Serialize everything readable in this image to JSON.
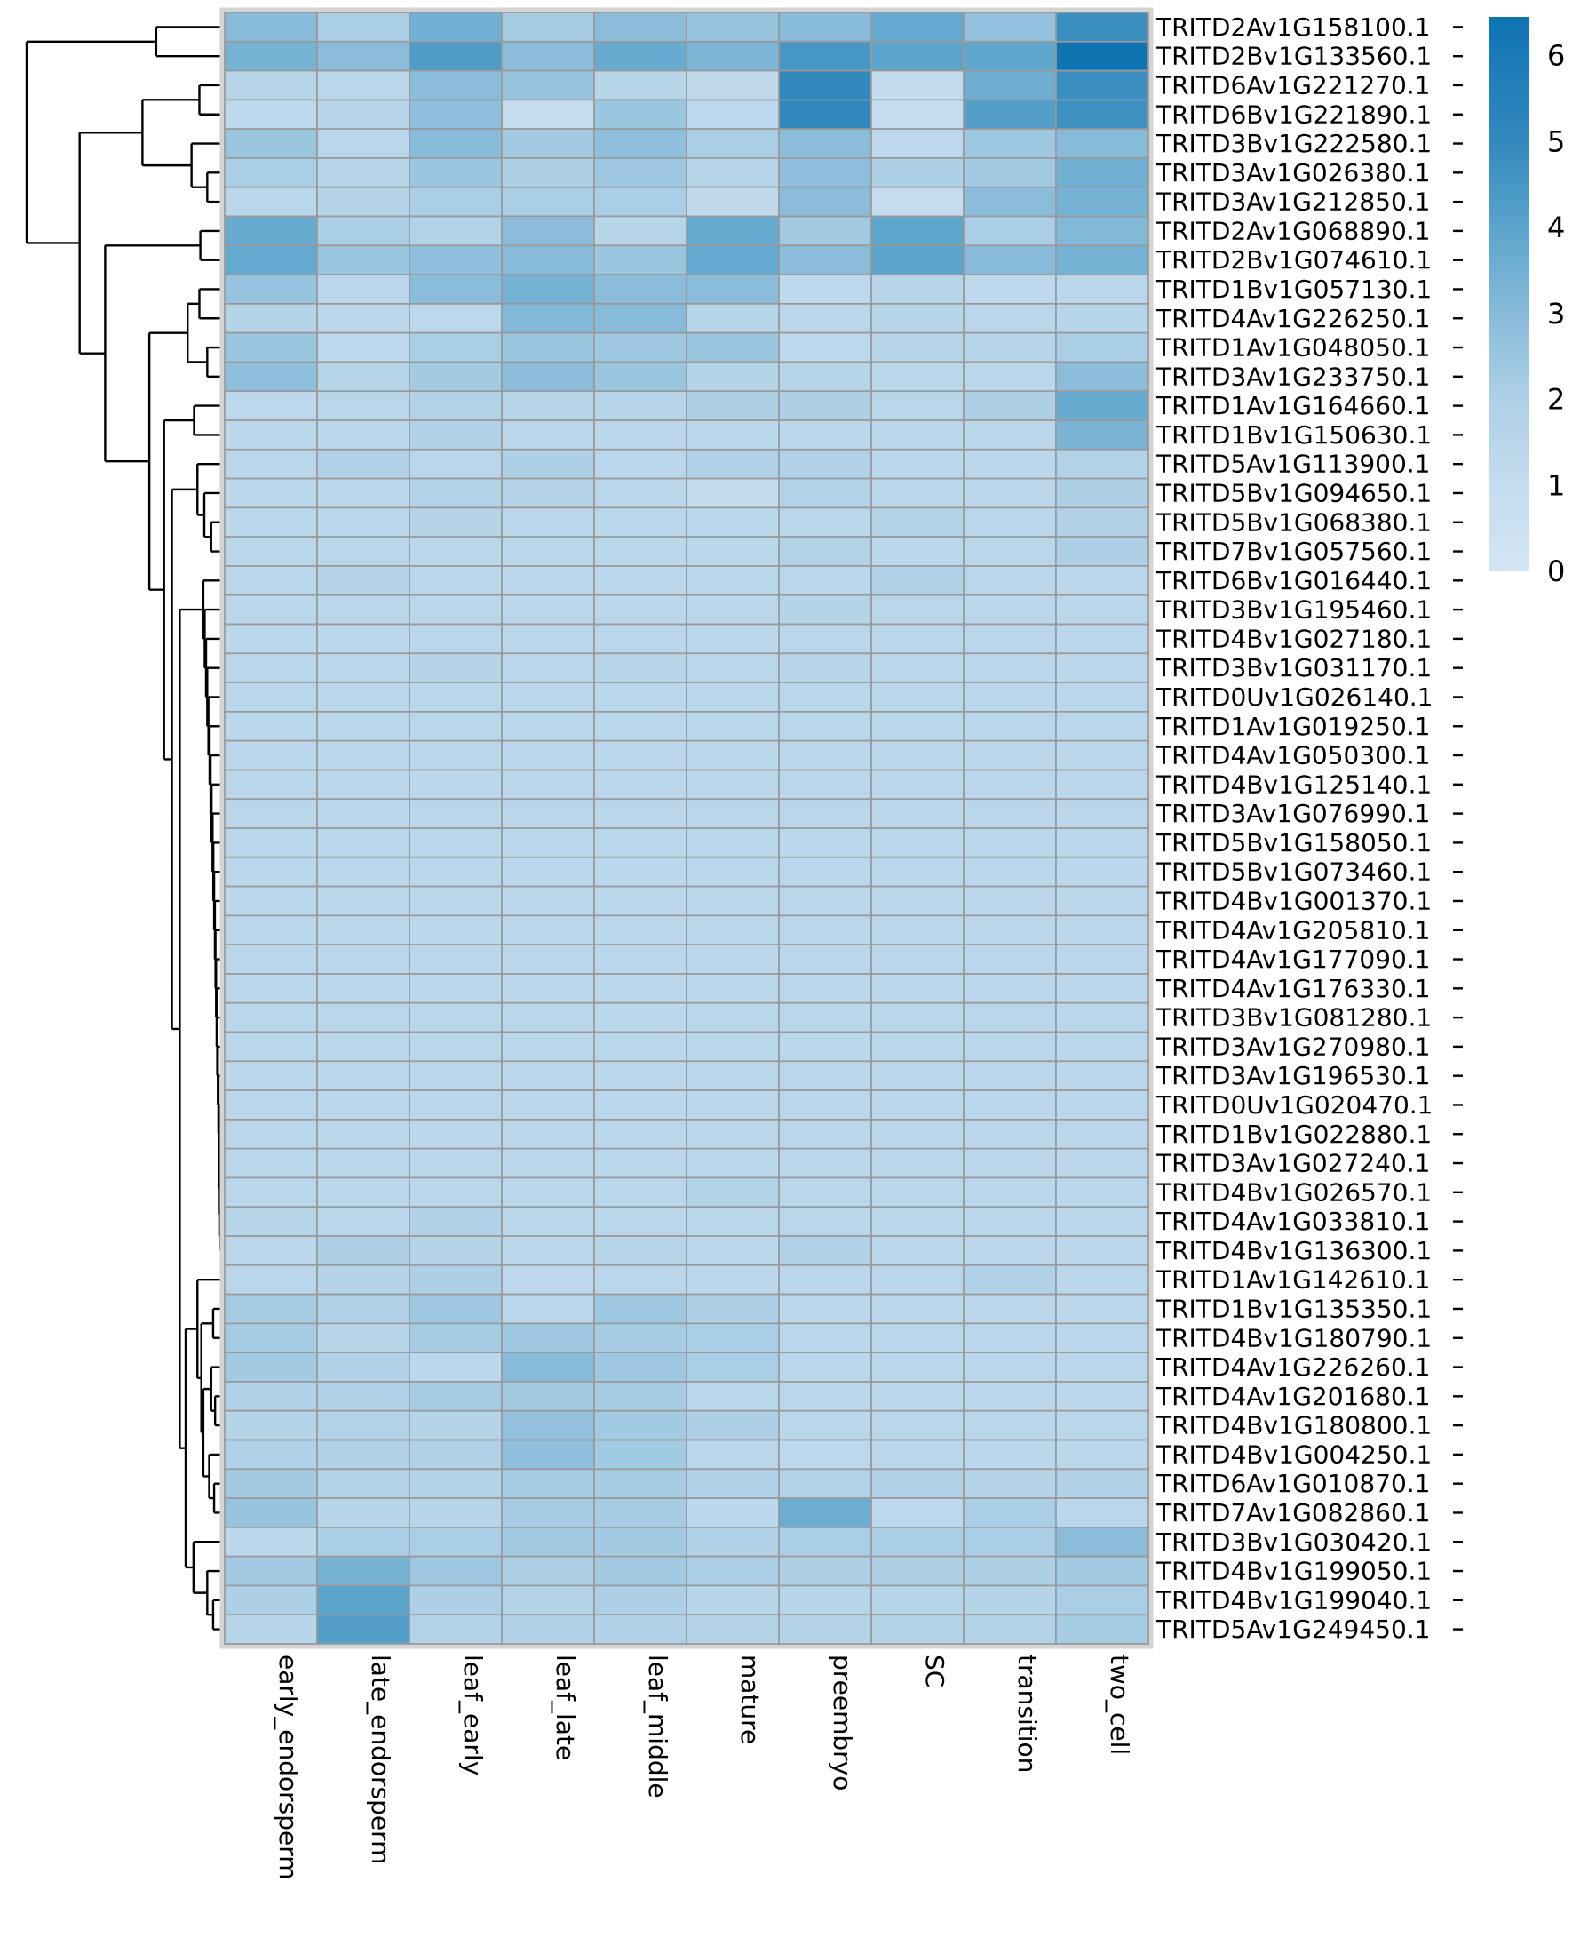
{
  "chart_data": {
    "type": "heatmap",
    "title": "",
    "xlabel": "",
    "ylabel": "",
    "legend_position": "right",
    "grid": true,
    "columns": [
      "early_endorsperm",
      "late_endorsperm",
      "leaf_early",
      "leaf_late",
      "leaf_middle",
      "mature",
      "preembryo",
      "SC",
      "transition",
      "two_cell"
    ],
    "rows": [
      "TRITD2Av1G158100.1",
      "TRITD2Bv1G133560.1",
      "TRITD6Av1G221270.1",
      "TRITD6Bv1G221890.1",
      "TRITD3Bv1G222580.1",
      "TRITD3Av1G026380.1",
      "TRITD3Av1G212850.1",
      "TRITD2Av1G068890.1",
      "TRITD2Bv1G074610.1",
      "TRITD1Bv1G057130.1",
      "TRITD4Av1G226250.1",
      "TRITD1Av1G048050.1",
      "TRITD3Av1G233750.1",
      "TRITD1Av1G164660.1",
      "TRITD1Bv1G150630.1",
      "TRITD5Av1G113900.1",
      "TRITD5Bv1G094650.1",
      "TRITD5Bv1G068380.1",
      "TRITD7Bv1G057560.1",
      "TRITD6Bv1G016440.1",
      "TRITD3Bv1G195460.1",
      "TRITD4Bv1G027180.1",
      "TRITD3Bv1G031170.1",
      "TRITD0Uv1G026140.1",
      "TRITD1Av1G019250.1",
      "TRITD4Av1G050300.1",
      "TRITD4Bv1G125140.1",
      "TRITD3Av1G076990.1",
      "TRITD5Bv1G158050.1",
      "TRITD5Bv1G073460.1",
      "TRITD4Bv1G001370.1",
      "TRITD4Av1G205810.1",
      "TRITD4Av1G177090.1",
      "TRITD4Av1G176330.1",
      "TRITD3Bv1G081280.1",
      "TRITD3Av1G270980.1",
      "TRITD3Av1G196530.1",
      "TRITD0Uv1G020470.1",
      "TRITD1Bv1G022880.1",
      "TRITD3Av1G027240.1",
      "TRITD4Bv1G026570.1",
      "TRITD4Av1G033810.1",
      "TRITD4Bv1G136300.1",
      "TRITD1Av1G142610.1",
      "TRITD1Bv1G135350.1",
      "TRITD4Bv1G180790.1",
      "TRITD4Av1G226260.1",
      "TRITD4Av1G201680.1",
      "TRITD4Bv1G180800.1",
      "TRITD4Bv1G004250.1",
      "TRITD6Av1G010870.1",
      "TRITD7Av1G082860.1",
      "TRITD3Bv1G030420.1",
      "TRITD4Bv1G199050.1",
      "TRITD4Bv1G199040.1",
      "TRITD5Av1G249450.1"
    ],
    "values": [
      [
        3.0,
        2.1,
        3.5,
        2.2,
        2.9,
        2.6,
        3.0,
        3.8,
        2.7,
        4.8
      ],
      [
        3.4,
        2.9,
        4.3,
        2.9,
        3.7,
        3.2,
        4.5,
        4.0,
        3.9,
        6.4
      ],
      [
        1.6,
        1.5,
        2.9,
        2.6,
        1.6,
        1.2,
        5.0,
        1.1,
        3.6,
        4.8
      ],
      [
        1.3,
        1.6,
        2.8,
        1.0,
        2.5,
        1.3,
        5.1,
        1.0,
        4.2,
        4.7
      ],
      [
        2.5,
        1.5,
        3.0,
        2.3,
        2.8,
        2.1,
        2.9,
        1.3,
        2.4,
        3.0
      ],
      [
        2.1,
        1.6,
        2.5,
        2.0,
        2.4,
        1.6,
        2.8,
        2.0,
        2.3,
        3.5
      ],
      [
        1.5,
        1.7,
        2.1,
        2.1,
        2.1,
        1.2,
        2.9,
        1.0,
        2.9,
        3.4
      ],
      [
        3.7,
        2.1,
        1.8,
        2.9,
        1.6,
        3.7,
        2.3,
        3.9,
        2.1,
        3.1
      ],
      [
        3.8,
        2.5,
        2.8,
        3.0,
        2.5,
        3.8,
        2.9,
        4.0,
        3.0,
        3.4
      ],
      [
        2.6,
        1.5,
        2.9,
        3.4,
        2.9,
        2.9,
        1.3,
        1.6,
        1.3,
        1.5
      ],
      [
        1.7,
        1.5,
        1.3,
        3.1,
        3.0,
        1.6,
        1.5,
        1.6,
        1.5,
        1.6
      ],
      [
        2.5,
        1.3,
        2.1,
        2.5,
        2.4,
        2.5,
        1.3,
        1.6,
        1.6,
        2.1
      ],
      [
        2.8,
        1.6,
        2.3,
        2.9,
        2.5,
        1.7,
        1.6,
        1.5,
        1.5,
        2.9
      ],
      [
        1.3,
        1.5,
        1.8,
        1.6,
        1.6,
        2.0,
        2.0,
        1.5,
        2.0,
        3.7
      ],
      [
        1.4,
        1.5,
        1.9,
        1.5,
        1.5,
        1.4,
        1.5,
        1.5,
        1.5,
        3.3
      ],
      [
        1.5,
        1.9,
        1.5,
        2.0,
        1.5,
        1.9,
        1.9,
        1.4,
        1.4,
        1.8
      ],
      [
        1.4,
        1.4,
        1.8,
        1.7,
        1.5,
        1.1,
        1.8,
        1.4,
        1.4,
        2.0
      ],
      [
        1.4,
        1.5,
        1.7,
        1.5,
        1.5,
        1.4,
        1.5,
        1.8,
        1.5,
        1.9
      ],
      [
        1.5,
        1.5,
        1.5,
        1.5,
        1.5,
        1.4,
        1.8,
        1.4,
        1.5,
        2.0
      ],
      [
        1.5,
        1.7,
        1.5,
        1.5,
        1.5,
        1.5,
        1.5,
        1.9,
        1.5,
        1.5
      ],
      [
        1.5,
        1.5,
        1.5,
        1.5,
        1.5,
        1.5,
        1.7,
        1.5,
        1.5,
        1.5
      ],
      [
        1.4,
        1.4,
        1.5,
        1.5,
        1.5,
        1.4,
        1.5,
        1.5,
        1.5,
        1.5
      ],
      [
        1.5,
        1.5,
        1.7,
        1.5,
        1.6,
        1.5,
        1.6,
        1.5,
        1.5,
        1.5
      ],
      [
        1.5,
        1.5,
        1.5,
        1.5,
        1.5,
        1.5,
        1.5,
        1.5,
        1.5,
        1.5
      ],
      [
        1.4,
        1.5,
        1.5,
        1.5,
        1.5,
        1.5,
        1.5,
        1.5,
        1.5,
        1.5
      ],
      [
        1.5,
        1.5,
        1.5,
        1.5,
        1.5,
        1.4,
        1.5,
        1.5,
        1.4,
        1.5
      ],
      [
        1.5,
        1.5,
        1.4,
        1.5,
        1.5,
        1.5,
        1.5,
        1.5,
        1.5,
        1.5
      ],
      [
        1.5,
        1.4,
        1.5,
        1.5,
        1.5,
        1.5,
        1.5,
        1.4,
        1.5,
        1.5
      ],
      [
        1.5,
        1.5,
        1.5,
        1.4,
        1.5,
        1.5,
        1.4,
        1.5,
        1.5,
        1.5
      ],
      [
        1.5,
        1.5,
        1.5,
        1.5,
        1.4,
        1.5,
        1.5,
        1.5,
        1.5,
        1.4
      ],
      [
        1.4,
        1.5,
        1.5,
        1.5,
        1.5,
        1.5,
        1.5,
        1.5,
        1.5,
        1.5
      ],
      [
        1.5,
        1.5,
        1.4,
        1.5,
        1.5,
        1.5,
        1.5,
        1.4,
        1.5,
        1.5
      ],
      [
        1.5,
        1.5,
        1.5,
        1.5,
        1.5,
        1.4,
        1.5,
        1.5,
        1.5,
        1.5
      ],
      [
        1.5,
        1.4,
        1.5,
        1.5,
        1.5,
        1.5,
        1.5,
        1.5,
        1.4,
        1.5
      ],
      [
        1.5,
        1.5,
        1.5,
        1.5,
        1.4,
        1.5,
        1.5,
        1.5,
        1.5,
        1.5
      ],
      [
        1.5,
        1.5,
        1.5,
        1.4,
        1.5,
        1.5,
        1.4,
        1.5,
        1.5,
        1.5
      ],
      [
        1.4,
        1.5,
        1.5,
        1.5,
        1.5,
        1.5,
        1.5,
        1.5,
        1.5,
        1.5
      ],
      [
        1.5,
        1.5,
        1.5,
        1.5,
        1.5,
        1.5,
        1.5,
        1.5,
        1.5,
        1.5
      ],
      [
        1.5,
        1.5,
        1.4,
        1.5,
        1.5,
        1.5,
        1.5,
        1.5,
        1.5,
        1.5
      ],
      [
        1.5,
        1.5,
        1.5,
        1.5,
        1.5,
        1.4,
        1.5,
        1.5,
        1.5,
        1.5
      ],
      [
        1.5,
        1.5,
        1.5,
        1.5,
        1.5,
        1.8,
        1.5,
        1.5,
        1.5,
        1.5
      ],
      [
        1.6,
        1.5,
        1.9,
        1.5,
        1.5,
        1.5,
        1.5,
        1.5,
        1.5,
        1.5
      ],
      [
        1.5,
        2.0,
        1.7,
        1.4,
        1.6,
        1.4,
        1.9,
        1.5,
        1.5,
        1.5
      ],
      [
        1.5,
        1.7,
        2.0,
        1.3,
        1.5,
        1.4,
        1.5,
        1.5,
        1.9,
        1.5
      ],
      [
        2.2,
        1.9,
        2.4,
        1.5,
        2.4,
        2.0,
        1.5,
        1.5,
        1.5,
        1.5
      ],
      [
        2.2,
        1.6,
        2.2,
        2.4,
        2.2,
        2.1,
        1.5,
        1.5,
        1.5,
        1.5
      ],
      [
        2.3,
        1.9,
        1.4,
        3.0,
        2.4,
        2.1,
        1.5,
        1.5,
        1.5,
        1.5
      ],
      [
        1.9,
        1.9,
        2.2,
        2.3,
        2.2,
        1.5,
        1.5,
        1.5,
        1.5,
        1.5
      ],
      [
        1.7,
        1.8,
        1.7,
        2.7,
        2.3,
        2.0,
        1.5,
        1.5,
        1.5,
        1.5
      ],
      [
        1.9,
        1.9,
        1.9,
        2.8,
        2.3,
        1.5,
        1.3,
        1.4,
        1.4,
        1.4
      ],
      [
        2.3,
        1.8,
        1.8,
        2.2,
        2.2,
        1.9,
        1.8,
        1.9,
        1.7,
        1.9
      ],
      [
        2.6,
        1.6,
        1.6,
        2.2,
        2.2,
        1.4,
        3.6,
        1.3,
        2.1,
        1.5
      ],
      [
        1.4,
        2.1,
        2.1,
        2.3,
        2.3,
        1.9,
        2.1,
        2.1,
        2.1,
        2.9
      ],
      [
        2.3,
        3.4,
        2.4,
        2.0,
        2.3,
        2.1,
        2.0,
        2.0,
        2.0,
        2.3
      ],
      [
        2.0,
        4.0,
        2.0,
        1.8,
        2.0,
        1.6,
        1.6,
        1.6,
        1.7,
        2.1
      ],
      [
        1.6,
        4.2,
        1.8,
        1.9,
        1.9,
        1.7,
        1.7,
        1.8,
        1.8,
        2.2
      ]
    ],
    "colorbar": {
      "vmin": 0,
      "vmax": 6.45,
      "ticks": [
        {
          "label": "6",
          "value": 6
        },
        {
          "label": "5",
          "value": 5
        },
        {
          "label": "4",
          "value": 4
        },
        {
          "label": "3",
          "value": 3
        },
        {
          "label": "2",
          "value": 2
        },
        {
          "label": "1",
          "value": 1
        },
        {
          "label": "0",
          "value": 0
        }
      ]
    },
    "color_stops": [
      [
        0,
        "#d3e5f2"
      ],
      [
        1,
        "#c4dcee"
      ],
      [
        2,
        "#aed0e6"
      ],
      [
        3,
        "#87bbd9"
      ],
      [
        4,
        "#5ba4cc"
      ],
      [
        5,
        "#3389bd"
      ],
      [
        6,
        "#1a7ab8"
      ],
      [
        6.5,
        "#0c73b1"
      ]
    ],
    "dendrogram": [
      1.0,
      [
        0.34,
        0,
        1
      ],
      [
        0.73,
        [
          0.41,
          [
            0.12,
            2,
            3
          ],
          [
            0.16,
            4,
            [
              0.08,
              5,
              6
            ]
          ]
        ],
        [
          0.6,
          [
            0.115,
            7,
            8
          ],
          [
            0.375,
            [
              0.18,
              [
                0.12,
                9,
                10
              ],
              [
                0.08,
                11,
                12
              ]
            ],
            [
              0.3,
              [
                0.147,
                13,
                14
              ],
              [
                0.26,
                [
                  0.13,
                  15,
                  [
                    0.095,
                    16,
                    [
                      0.06,
                      17,
                      18
                    ]
                  ]
                ],
                [
                  0.22,
                  [
                    0.1,
                    19,
                    [
                      0.093,
                      20,
                      [
                        0.086,
                        21,
                        [
                          0.08,
                          22,
                          [
                            0.074,
                            23,
                            [
                              0.068,
                              24,
                              [
                                0.063,
                                25,
                                [
                                  0.058,
                                  26,
                                  [
                                    0.053,
                                    27,
                                    [
                                      0.049,
                                      28,
                                      [
                                        0.045,
                                        29,
                                        [
                                          0.041,
                                          30,
                                          [
                                            0.038,
                                            31,
                                            [
                                              0.035,
                                              32,
                                              [
                                                0.032,
                                                33,
                                                [
                                                  0.029,
                                                  34,
                                                  [
                                                    0.026,
                                                    35,
                                                    [
                                                      0.023,
                                                      36,
                                                      [
                                                        0.02,
                                                        37,
                                                        [
                                                          0.018,
                                                          38,
                                                          [
                                                            0.016,
                                                            39,
                                                            [
                                                              0.014,
                                                              40,
                                                              [
                                                                0.012,
                                                                41,
                                                                42
                                                              ]
                                                            ]
                                                          ]
                                                        ]
                                                      ]
                                                    ]
                                                  ]
                                                ]
                                              ]
                                            ]
                                          ]
                                        ]
                                      ]
                                    ]
                                  ]
                                ]
                              ]
                            ]
                          ]
                        ]
                      ]
                    ]
                  ],
                  [
                    0.19,
                    [
                      0.13,
                      43,
                      [
                        0.11,
                        [
                          0.05,
                          44,
                          45
                        ],
                        [
                          0.1,
                          [
                            0.06,
                            46,
                            [
                              0.04,
                              47,
                              48
                            ]
                          ],
                          [
                            0.07,
                            49,
                            [
                              0.045,
                              50,
                              51
                            ]
                          ]
                        ]
                      ]
                    ],
                    [
                      0.15,
                      52,
                      [
                        0.08,
                        53,
                        [
                          0.05,
                          54,
                          55
                        ]
                      ]
                    ]
                  ]
                ]
              ]
            ]
          ]
        ]
      ]
    ]
  }
}
